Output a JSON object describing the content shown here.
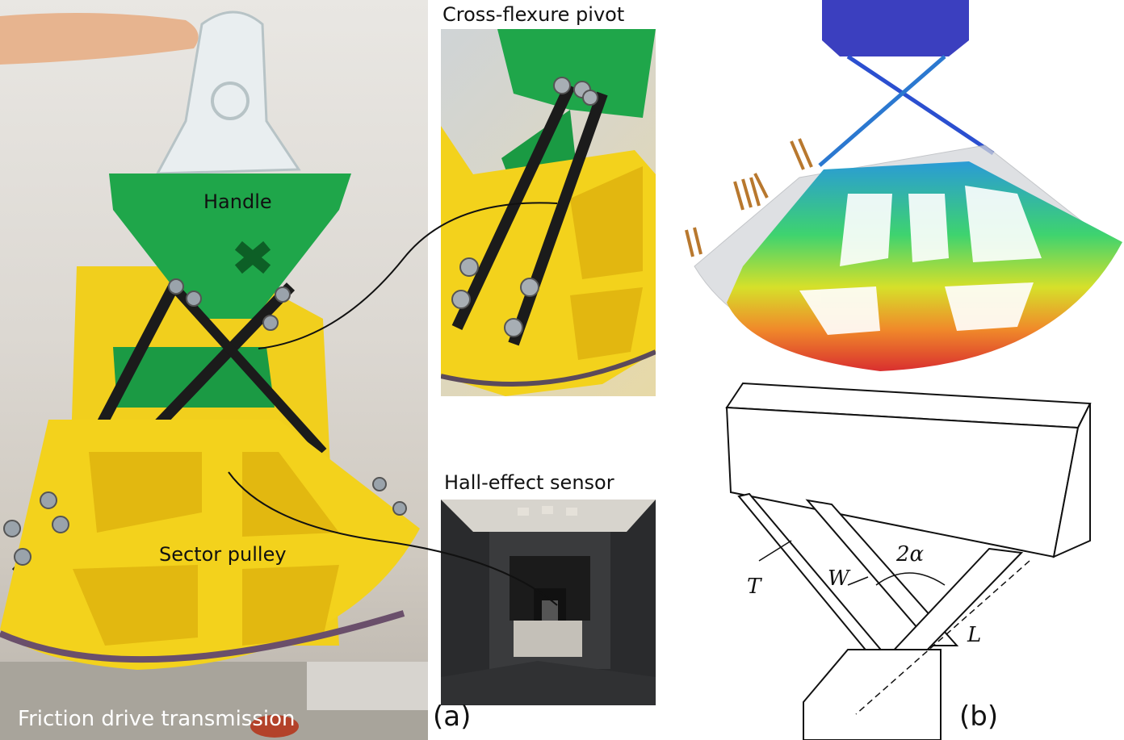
{
  "labels": {
    "cross_flexure_title": "Cross-flexure pivot",
    "hall_sensor_title": "Hall-effect sensor",
    "handle": "Handle",
    "sector_pulley": "Sector pulley",
    "friction_drive": "Friction drive transmission",
    "panel_a": "(a)",
    "panel_b": "(b)"
  },
  "geometry_symbols": {
    "thickness": "T",
    "width": "W",
    "angle": "2α",
    "length": "L"
  },
  "colors": {
    "handle_green": "#1fa64a",
    "pulley_yellow": "#f3d21c",
    "fixture_blue": "#3b3fbf",
    "connector_line": "#111111"
  }
}
